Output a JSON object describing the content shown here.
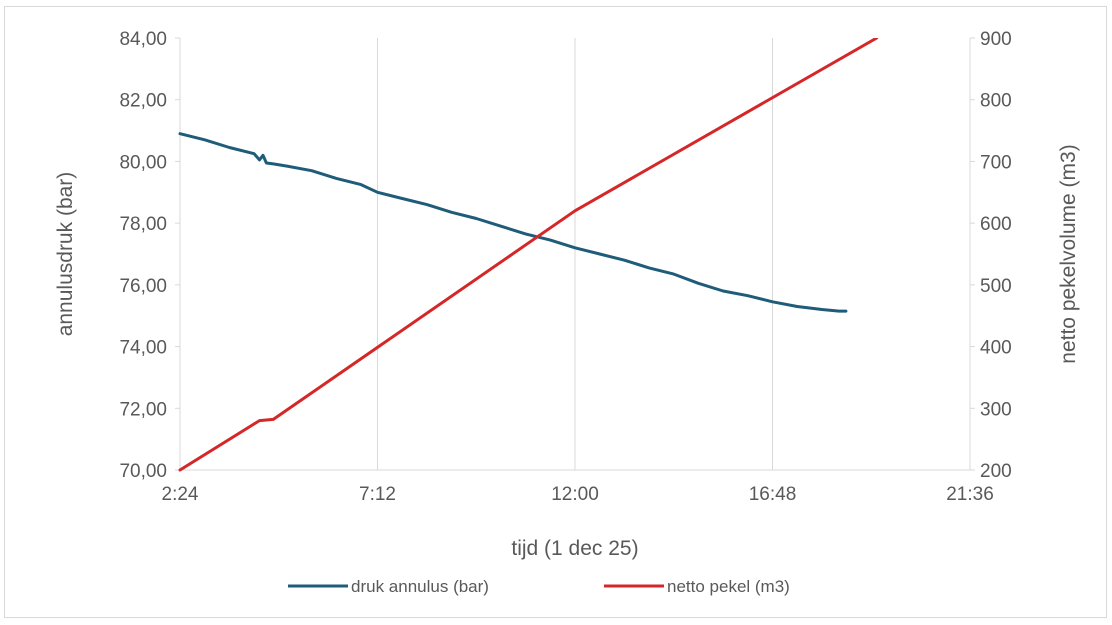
{
  "chart_data": {
    "type": "line",
    "x_axis": {
      "title": "tijd (1 dec 25)",
      "tick_labels": [
        "2:24",
        "7:12",
        "12:00",
        "16:48",
        "21:36"
      ],
      "range": [
        "2:24",
        "21:36"
      ]
    },
    "y_axis_left": {
      "title": "annulusdruk (bar)",
      "tick_labels": [
        "84,00",
        "82,00",
        "80,00",
        "78,00",
        "76,00",
        "74,00",
        "72,00",
        "70,00"
      ],
      "range": [
        70,
        84
      ]
    },
    "y_axis_right": {
      "title": "netto pekelvolume (m3)",
      "tick_labels": [
        "900",
        "800",
        "700",
        "600",
        "500",
        "400",
        "300",
        "200"
      ],
      "range": [
        200,
        900
      ]
    },
    "grid": "vertical",
    "legend_position": "bottom",
    "series": [
      {
        "name": "druk annulus (bar)",
        "axis": "left",
        "color": "#1f5c7a",
        "x": [
          "2:24",
          "3:00",
          "3:36",
          "4:12",
          "4:20",
          "4:25",
          "4:30",
          "4:40",
          "5:00",
          "5:36",
          "6:12",
          "6:48",
          "7:12",
          "7:48",
          "8:24",
          "9:00",
          "9:36",
          "10:12",
          "10:48",
          "11:24",
          "12:00",
          "12:36",
          "13:12",
          "13:48",
          "14:24",
          "15:00",
          "15:36",
          "16:12",
          "16:48",
          "17:24",
          "18:00",
          "18:25",
          "18:35"
        ],
        "values": [
          80.9,
          80.7,
          80.45,
          80.25,
          80.05,
          80.2,
          79.95,
          79.92,
          79.85,
          79.7,
          79.45,
          79.25,
          79.0,
          78.8,
          78.6,
          78.35,
          78.15,
          77.9,
          77.65,
          77.45,
          77.2,
          77.0,
          76.8,
          76.55,
          76.35,
          76.05,
          75.8,
          75.65,
          75.45,
          75.3,
          75.2,
          75.15,
          75.15
        ]
      },
      {
        "name": "netto pekel (m3)",
        "axis": "right",
        "color": "#d62728",
        "x": [
          "2:24",
          "4:20",
          "4:40",
          "12:00",
          "19:20"
        ],
        "values": [
          200,
          280,
          282,
          620,
          900
        ]
      }
    ]
  }
}
